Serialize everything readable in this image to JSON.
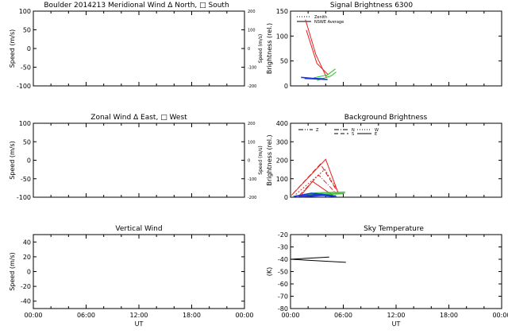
{
  "chart_data": [
    {
      "type": "line",
      "panel": "meridional",
      "title": "Boulder   2014213     Meridional Wind   Δ North, □ South",
      "xlabel": "",
      "ylabel": "Speed (m/s)",
      "ylabel_right": "Speed (m/s)",
      "xlim": [
        0,
        24
      ],
      "ylim": [
        -100,
        100
      ],
      "yticks": [
        -100,
        -50,
        0,
        50,
        100
      ],
      "ylim_right": [
        -200,
        200
      ],
      "yticks_right": [
        -200,
        -100,
        0,
        100,
        200
      ],
      "xticks": [],
      "series": []
    },
    {
      "type": "line",
      "panel": "signal",
      "title": "Signal Brightness       6300",
      "ylabel": "Brightness (rel.)",
      "xlim": [
        0,
        24
      ],
      "ylim": [
        0,
        150
      ],
      "yticks": [
        0,
        50,
        100,
        150
      ],
      "xticks": [],
      "legend": [
        "Zenith",
        "NSWE Average"
      ],
      "series": [
        {
          "name": "red-1",
          "color": "#e8201c",
          "x": [
            1.7,
            2.9,
            4.1
          ],
          "y": [
            133,
            62,
            17
          ]
        },
        {
          "name": "red-2",
          "color": "#e8201c",
          "x": [
            1.8,
            3.0,
            4.3
          ],
          "y": [
            112,
            45,
            22
          ]
        },
        {
          "name": "green-1",
          "color": "#22c41e",
          "x": [
            2.6,
            4.2,
            5.1
          ],
          "y": [
            16,
            22,
            34
          ]
        },
        {
          "name": "green-2",
          "color": "#22c41e",
          "x": [
            3.0,
            4.6,
            5.2
          ],
          "y": [
            11,
            20,
            28
          ]
        },
        {
          "name": "blue-1",
          "color": "#1f37d6",
          "x": [
            1.2,
            2.5,
            3.8
          ],
          "y": [
            17,
            15,
            14
          ]
        },
        {
          "name": "blue-2",
          "color": "#1f37d6",
          "x": [
            1.6,
            2.8,
            4.2
          ],
          "y": [
            15,
            14,
            13
          ]
        }
      ]
    },
    {
      "type": "line",
      "panel": "zonal",
      "title": "Zonal Wind       Δ East, □ West",
      "ylabel": "Speed (m/s)",
      "ylabel_right": "Speed (m/s)",
      "xlim": [
        0,
        24
      ],
      "ylim": [
        -100,
        100
      ],
      "yticks": [
        -100,
        -50,
        0,
        50,
        100
      ],
      "ylim_right": [
        -200,
        200
      ],
      "yticks_right": [
        -200,
        -100,
        0,
        100,
        200
      ],
      "xticks": [],
      "series": []
    },
    {
      "type": "line",
      "panel": "background",
      "title": "Background Brightness",
      "ylabel": "Brightness (rel.)",
      "xlim": [
        0,
        24
      ],
      "ylim": [
        0,
        400
      ],
      "yticks": [
        0,
        100,
        200,
        300,
        400
      ],
      "xticks": [],
      "legend": [
        "Z",
        "N",
        "S",
        "W",
        "E"
      ],
      "series": [
        {
          "name": "red-E",
          "color": "#e8201c",
          "x": [
            0.1,
            4.0,
            5.4
          ],
          "y": [
            10,
            205,
            25
          ]
        },
        {
          "name": "red-N",
          "color": "#e8201c",
          "x": [
            0.3,
            3.4,
            5.2
          ],
          "y": [
            20,
            180,
            40
          ]
        },
        {
          "name": "red-S",
          "color": "#e8201c",
          "x": [
            0.6,
            3.9,
            5.4
          ],
          "y": [
            15,
            150,
            30
          ]
        },
        {
          "name": "red-W",
          "color": "#e8201c",
          "x": [
            1.0,
            3.2,
            5.2
          ],
          "y": [
            10,
            120,
            20
          ]
        },
        {
          "name": "red-Z",
          "color": "#e8201c",
          "x": [
            1.1,
            2.5,
            4.8
          ],
          "y": [
            5,
            85,
            10
          ]
        },
        {
          "name": "green-1",
          "color": "#22c41e",
          "x": [
            0.3,
            3.0,
            6.2
          ],
          "y": [
            5,
            25,
            28
          ]
        },
        {
          "name": "green-2",
          "color": "#22c41e",
          "x": [
            0.8,
            3.6,
            6.2
          ],
          "y": [
            8,
            20,
            22
          ]
        },
        {
          "name": "green-3",
          "color": "#22c41e",
          "x": [
            1.5,
            4.0,
            6.0
          ],
          "y": [
            3,
            15,
            18
          ]
        },
        {
          "name": "blue-1",
          "color": "#1f37d6",
          "x": [
            0.4,
            2.4,
            4.8
          ],
          "y": [
            4,
            22,
            8
          ]
        },
        {
          "name": "blue-2",
          "color": "#1f37d6",
          "x": [
            0.9,
            3.1,
            5.2
          ],
          "y": [
            3,
            16,
            6
          ]
        },
        {
          "name": "blue-3",
          "color": "#1f37d6",
          "x": [
            1.2,
            3.7,
            5.0
          ],
          "y": [
            2,
            10,
            4
          ]
        }
      ]
    },
    {
      "type": "line",
      "panel": "vertical",
      "title": "Vertical Wind",
      "xlabel": "UT",
      "ylabel": "Speed (m/s)",
      "xlim": [
        0,
        24
      ],
      "ylim": [
        -50,
        50
      ],
      "yticks": [
        -40,
        -20,
        0,
        20,
        40
      ],
      "xticks": [
        "00:00",
        "06:00",
        "12:00",
        "18:00",
        "00:00"
      ],
      "series": []
    },
    {
      "type": "line",
      "panel": "sky",
      "title": "Sky Temperature",
      "xlabel": "UT",
      "ylabel": "(K)",
      "xlim": [
        0,
        24
      ],
      "ylim": [
        -80,
        -20
      ],
      "yticks": [
        -80,
        -70,
        -60,
        -50,
        -40,
        -30,
        -20
      ],
      "xticks": [
        "00:00",
        "06:00",
        "12:00",
        "18:00",
        "00:00"
      ],
      "series": [
        {
          "name": "sky-temp",
          "color": "#000000",
          "x": [
            4.4,
            0.0,
            6.3
          ],
          "y": [
            -38.2,
            -40.0,
            -42.5
          ]
        }
      ]
    }
  ]
}
